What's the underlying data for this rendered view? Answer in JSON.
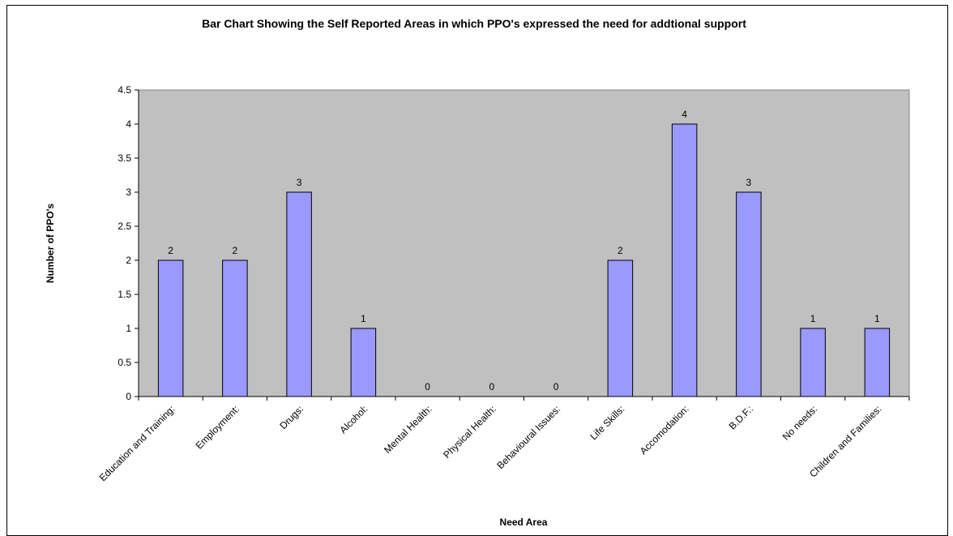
{
  "chart_data": {
    "type": "bar",
    "title": "Bar Chart Showing the Self Reported Areas in which PPO's expressed the need for addtional support",
    "xlabel": "Need Area",
    "ylabel": "Number of PPO's",
    "categories": [
      "Education and Training:",
      "Employment:",
      "Drugs:",
      "Alcohol:",
      "Mental Health:",
      "Physical Health:",
      "Behavioural Issues:",
      "Life Skills:",
      "Accomodation:",
      "B.D.F.:",
      "No needs:",
      "Children and Families:"
    ],
    "values": [
      2,
      2,
      3,
      1,
      0,
      0,
      0,
      2,
      4,
      3,
      1,
      1
    ],
    "data_labels": [
      "2",
      "2",
      "3",
      "1",
      "0",
      "0",
      "0",
      "2",
      "4",
      "3",
      "1",
      "1"
    ],
    "yticks": [
      "0",
      "0.5",
      "1",
      "1.5",
      "2",
      "2.5",
      "3",
      "3.5",
      "4",
      "4.5"
    ],
    "ylim": [
      0,
      4.5
    ],
    "grid": false,
    "legend": "none",
    "colors": {
      "bar": "#9999ff",
      "plot_background": "#c0c0c0",
      "border": "#000000"
    }
  }
}
